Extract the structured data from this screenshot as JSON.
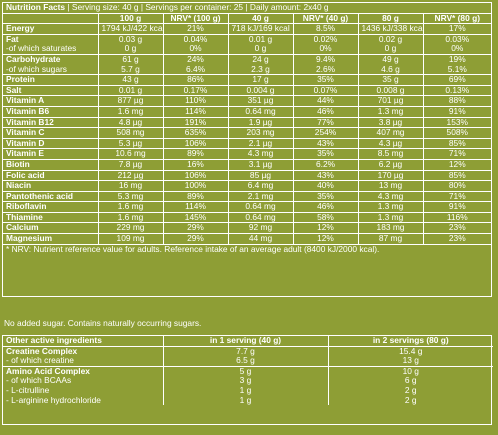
{
  "nutrition": {
    "title": "Nutrition Facts",
    "serving_info": "| Serving size: 40 g | Servings per container: 25 | Daily amount: 2x40 g",
    "columns": [
      "100 g",
      "NRV* (100 g)",
      "40 g",
      "NRV* (40 g)",
      "80 g",
      "NRV* (80 g)"
    ],
    "rows": [
      {
        "name": "Energy",
        "sub": false,
        "sep": false,
        "v": [
          "1794 kJ/422 kcal",
          "21%",
          "718 kJ/169 kcal",
          "8.5%",
          "1436 kJ/338 kcal",
          "17%"
        ]
      },
      {
        "name": "Fat",
        "sub": false,
        "sep": true,
        "v": [
          "0.03 g",
          "0.04%",
          "0.01 g",
          "0.02%",
          "0.02 g",
          "0.03%"
        ]
      },
      {
        "name": "-of which saturates",
        "sub": true,
        "sep": false,
        "v": [
          "0 g",
          "0%",
          "0 g",
          "0%",
          "0 g",
          "0%"
        ]
      },
      {
        "name": "Carbohydrate",
        "sub": false,
        "sep": true,
        "v": [
          "61 g",
          "24%",
          "24 g",
          "9.4%",
          "49 g",
          "19%"
        ]
      },
      {
        "name": "-of which sugars",
        "sub": true,
        "sep": false,
        "v": [
          "5.7 g",
          "6.4%",
          "2.3 g",
          "2.6%",
          "4.6 g",
          "5.1%"
        ]
      },
      {
        "name": "Protein",
        "sub": false,
        "sep": true,
        "v": [
          "43 g",
          "86%",
          "17 g",
          "35%",
          "35 g",
          "69%"
        ]
      },
      {
        "name": "Salt",
        "sub": false,
        "sep": true,
        "v": [
          "0.01 g",
          "0.17%",
          "0.004 g",
          "0.07%",
          "0.008 g",
          "0.13%"
        ]
      },
      {
        "name": "Vitamin A",
        "sub": false,
        "sep": true,
        "v": [
          "877 µg",
          "110%",
          "351 µg",
          "44%",
          "701 µg",
          "88%"
        ]
      },
      {
        "name": "Vitamin B6",
        "sub": false,
        "sep": true,
        "v": [
          "1.6 mg",
          "114%",
          "0.64 mg",
          "46%",
          "1.3 mg",
          "91%"
        ]
      },
      {
        "name": "Vitamin B12",
        "sub": false,
        "sep": true,
        "v": [
          "4.8 µg",
          "191%",
          "1.9 µg",
          "77%",
          "3.8 µg",
          "153%"
        ]
      },
      {
        "name": "Vitamin C",
        "sub": false,
        "sep": true,
        "v": [
          "508 mg",
          "635%",
          "203 mg",
          "254%",
          "407 mg",
          "508%"
        ]
      },
      {
        "name": "Vitamin D",
        "sub": false,
        "sep": true,
        "v": [
          "5.3 µg",
          "106%",
          "2.1 µg",
          "43%",
          "4.3 µg",
          "85%"
        ]
      },
      {
        "name": "Vitamin E",
        "sub": false,
        "sep": true,
        "v": [
          "10.6 mg",
          "89%",
          "4.3 mg",
          "35%",
          "8.5 mg",
          "71%"
        ]
      },
      {
        "name": "Biotin",
        "sub": false,
        "sep": true,
        "v": [
          "7.8 µg",
          "16%",
          "3.1 µg",
          "6.2%",
          "6.2 µg",
          "12%"
        ]
      },
      {
        "name": "Folic acid",
        "sub": false,
        "sep": true,
        "v": [
          "212 µg",
          "106%",
          "85 µg",
          "43%",
          "170 µg",
          "85%"
        ]
      },
      {
        "name": "Niacin",
        "sub": false,
        "sep": true,
        "v": [
          "16 mg",
          "100%",
          "6.4 mg",
          "40%",
          "13 mg",
          "80%"
        ]
      },
      {
        "name": "Pantothenic acid",
        "sub": false,
        "sep": true,
        "v": [
          "5.3 mg",
          "89%",
          "2.1 mg",
          "35%",
          "4.3 mg",
          "71%"
        ]
      },
      {
        "name": "Riboflavin",
        "sub": false,
        "sep": true,
        "v": [
          "1.6 mg",
          "114%",
          "0.64 mg",
          "46%",
          "1.3 mg",
          "91%"
        ]
      },
      {
        "name": "Thiamine",
        "sub": false,
        "sep": true,
        "v": [
          "1.6 mg",
          "145%",
          "0.64 mg",
          "58%",
          "1.3 mg",
          "116%"
        ]
      },
      {
        "name": "Calcium",
        "sub": false,
        "sep": true,
        "v": [
          "229 mg",
          "29%",
          "92 mg",
          "12%",
          "183 mg",
          "23%"
        ]
      },
      {
        "name": "Magnesium",
        "sub": false,
        "sep": true,
        "v": [
          "109 mg",
          "29%",
          "44 mg",
          "12%",
          "87 mg",
          "23%"
        ]
      }
    ],
    "footnote": "* NRV: Nutrient reference value for adults. Reference intake of an average adult (8400 kJ/2000 kcal)."
  },
  "sugar_note": "No added sugar. Contains naturally occurring sugars.",
  "other": {
    "header": [
      "Other active ingredients",
      "in 1 serving (40 g)",
      "in 2 servings (80 g)"
    ],
    "rows": [
      {
        "name": "Creatine Complex",
        "sub": false,
        "sep": false,
        "v": [
          "7.7 g",
          "15.4 g"
        ]
      },
      {
        "name": "- of which creatine",
        "sub": true,
        "sep": false,
        "v": [
          "6.5 g",
          "13 g"
        ]
      },
      {
        "name": "Amino Acid Complex",
        "sub": false,
        "sep": true,
        "v": [
          "5 g",
          "10 g"
        ]
      },
      {
        "name": "- of which BCAAs",
        "sub": true,
        "sep": false,
        "v": [
          "3 g",
          "6 g"
        ]
      },
      {
        "name": "- L-citrulline",
        "sub": true,
        "sep": false,
        "v": [
          "1 g",
          "2 g"
        ]
      },
      {
        "name": "- L-arginine hydrochloride",
        "sub": true,
        "sep": false,
        "v": [
          "1 g",
          "2 g"
        ]
      }
    ]
  }
}
